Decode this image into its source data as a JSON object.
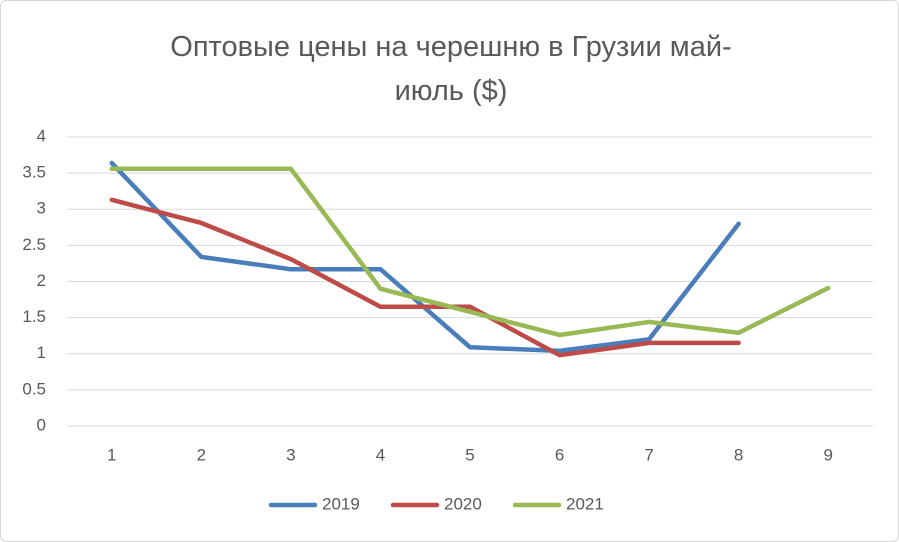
{
  "chart_data": {
    "type": "line",
    "title": "Оптовые цены на черешню в Грузии май-июль ($)",
    "categories": [
      "1",
      "2",
      "3",
      "4",
      "5",
      "6",
      "7",
      "8",
      "9"
    ],
    "series": [
      {
        "name": "2019",
        "color": "#4a7ebb",
        "values": [
          3.64,
          2.34,
          2.17,
          2.17,
          1.09,
          1.04,
          1.2,
          2.8,
          null
        ]
      },
      {
        "name": "2020",
        "color": "#be4b48",
        "values": [
          3.13,
          2.81,
          2.31,
          1.65,
          1.65,
          0.98,
          1.15,
          1.15,
          null
        ]
      },
      {
        "name": "2021",
        "color": "#98b954",
        "values": [
          3.56,
          3.56,
          3.56,
          1.9,
          1.58,
          1.26,
          1.44,
          1.29,
          1.91
        ]
      }
    ],
    "ylim": [
      0,
      4
    ],
    "yticks": [
      0,
      0.5,
      1,
      1.5,
      2,
      2.5,
      3,
      3.5,
      4
    ],
    "grid": true,
    "legend": "bottom"
  }
}
